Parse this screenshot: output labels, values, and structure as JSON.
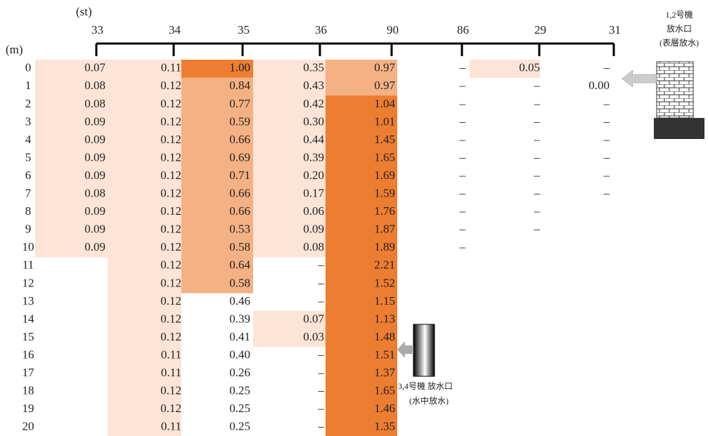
{
  "header": {
    "st_label": "(st)",
    "depth_label": "(m)"
  },
  "depths": [
    "0",
    "1",
    "2",
    "3",
    "4",
    "5",
    "6",
    "7",
    "8",
    "9",
    "10",
    "11",
    "12",
    "13",
    "14",
    "15",
    "16",
    "17",
    "18",
    "19",
    "20"
  ],
  "palette": [
    "#fde4d6",
    "#f4b183",
    "#ed7d31"
  ],
  "columns": [
    {
      "st": "33",
      "values": [
        "0.07",
        "0.08",
        "0.08",
        "0.09",
        "0.09",
        "0.09",
        "0.09",
        "0.08",
        "0.09",
        "0.09",
        "0.09",
        null,
        null,
        null,
        null,
        null,
        null,
        null,
        null,
        null,
        null
      ],
      "shade": [
        0,
        0,
        0,
        0,
        0,
        0,
        0,
        0,
        0,
        0,
        0,
        null,
        null,
        null,
        null,
        null,
        null,
        null,
        null,
        null,
        null
      ]
    },
    {
      "st": "34",
      "values": [
        "0.11",
        "0.12",
        "0.12",
        "0.12",
        "0.12",
        "0.12",
        "0.12",
        "0.12",
        "0.12",
        "0.12",
        "0.12",
        "0.12",
        "0.12",
        "0.12",
        "0.12",
        "0.12",
        "0.11",
        "0.11",
        "0.12",
        "0.12",
        "0.11"
      ],
      "shade": [
        0,
        0,
        0,
        0,
        0,
        0,
        0,
        0,
        0,
        0,
        0,
        0,
        0,
        0,
        0,
        0,
        0,
        0,
        0,
        0,
        0
      ]
    },
    {
      "st": "35",
      "values": [
        "1.00",
        "0.84",
        "0.77",
        "0.59",
        "0.66",
        "0.69",
        "0.71",
        "0.66",
        "0.66",
        "0.53",
        "0.58",
        "0.64",
        "0.58",
        "0.46",
        "0.39",
        "0.41",
        "0.40",
        "0.26",
        "0.25",
        "0.25",
        "0.25"
      ],
      "shade": [
        2,
        1,
        1,
        1,
        1,
        1,
        1,
        1,
        1,
        1,
        1,
        1,
        1,
        null,
        null,
        null,
        null,
        null,
        null,
        null,
        null
      ]
    },
    {
      "st": "36",
      "values": [
        "0.35",
        "0.43",
        "0.42",
        "0.30",
        "0.44",
        "0.39",
        "0.20",
        "0.17",
        "0.06",
        "0.09",
        "0.08",
        "–",
        "–",
        "–",
        "0.07",
        "0.03",
        "–",
        "–",
        "–",
        "–",
        "–"
      ],
      "shade": [
        0,
        0,
        0,
        0,
        0,
        0,
        0,
        0,
        0,
        0,
        0,
        null,
        null,
        null,
        0,
        0,
        null,
        null,
        null,
        null,
        null
      ]
    },
    {
      "st": "90",
      "values": [
        "0.97",
        "0.97",
        "1.04",
        "1.01",
        "1.45",
        "1.65",
        "1.69",
        "1.59",
        "1.76",
        "1.87",
        "1.89",
        "2.21",
        "1.52",
        "1.15",
        "1.13",
        "1.48",
        "1.51",
        "1.37",
        "1.65",
        "1.46",
        "1.35"
      ],
      "shade": [
        1,
        1,
        2,
        2,
        2,
        2,
        2,
        2,
        2,
        2,
        2,
        2,
        2,
        2,
        2,
        2,
        2,
        2,
        2,
        2,
        2
      ]
    },
    {
      "st": "86",
      "values": [
        "–",
        "–",
        "–",
        "–",
        "–",
        "–",
        "–",
        "–",
        "–",
        "–",
        "–",
        null,
        null,
        null,
        null,
        null,
        null,
        null,
        null,
        null,
        null
      ],
      "shade": [
        null,
        null,
        null,
        null,
        null,
        null,
        null,
        null,
        null,
        null,
        null,
        null,
        null,
        null,
        null,
        null,
        null,
        null,
        null,
        null,
        null
      ]
    },
    {
      "st": "29",
      "values": [
        "0.05",
        "–",
        "–",
        "–",
        "–",
        "–",
        "–",
        "–",
        "–",
        "–",
        null,
        null,
        null,
        null,
        null,
        null,
        null,
        null,
        null,
        null,
        null
      ],
      "shade": [
        0,
        null,
        null,
        null,
        null,
        null,
        null,
        null,
        null,
        null,
        null,
        null,
        null,
        null,
        null,
        null,
        null,
        null,
        null,
        null,
        null
      ]
    },
    {
      "st": "31",
      "values": [
        "–",
        "0.00",
        "–",
        "–",
        "–",
        "–",
        "–",
        "–",
        null,
        null,
        null,
        null,
        null,
        null,
        null,
        null,
        null,
        null,
        null,
        null,
        null
      ],
      "shade": [
        null,
        null,
        null,
        null,
        null,
        null,
        null,
        null,
        null,
        null,
        null,
        null,
        null,
        null,
        null,
        null,
        null,
        null,
        null,
        null,
        null
      ]
    }
  ],
  "outlet_12": {
    "line1": "1,2号機",
    "line2": "放水口",
    "line3": "(表層放水)"
  },
  "outlet_34": {
    "line1": "3,4号機 放水口",
    "line2": "(水中放水)"
  }
}
